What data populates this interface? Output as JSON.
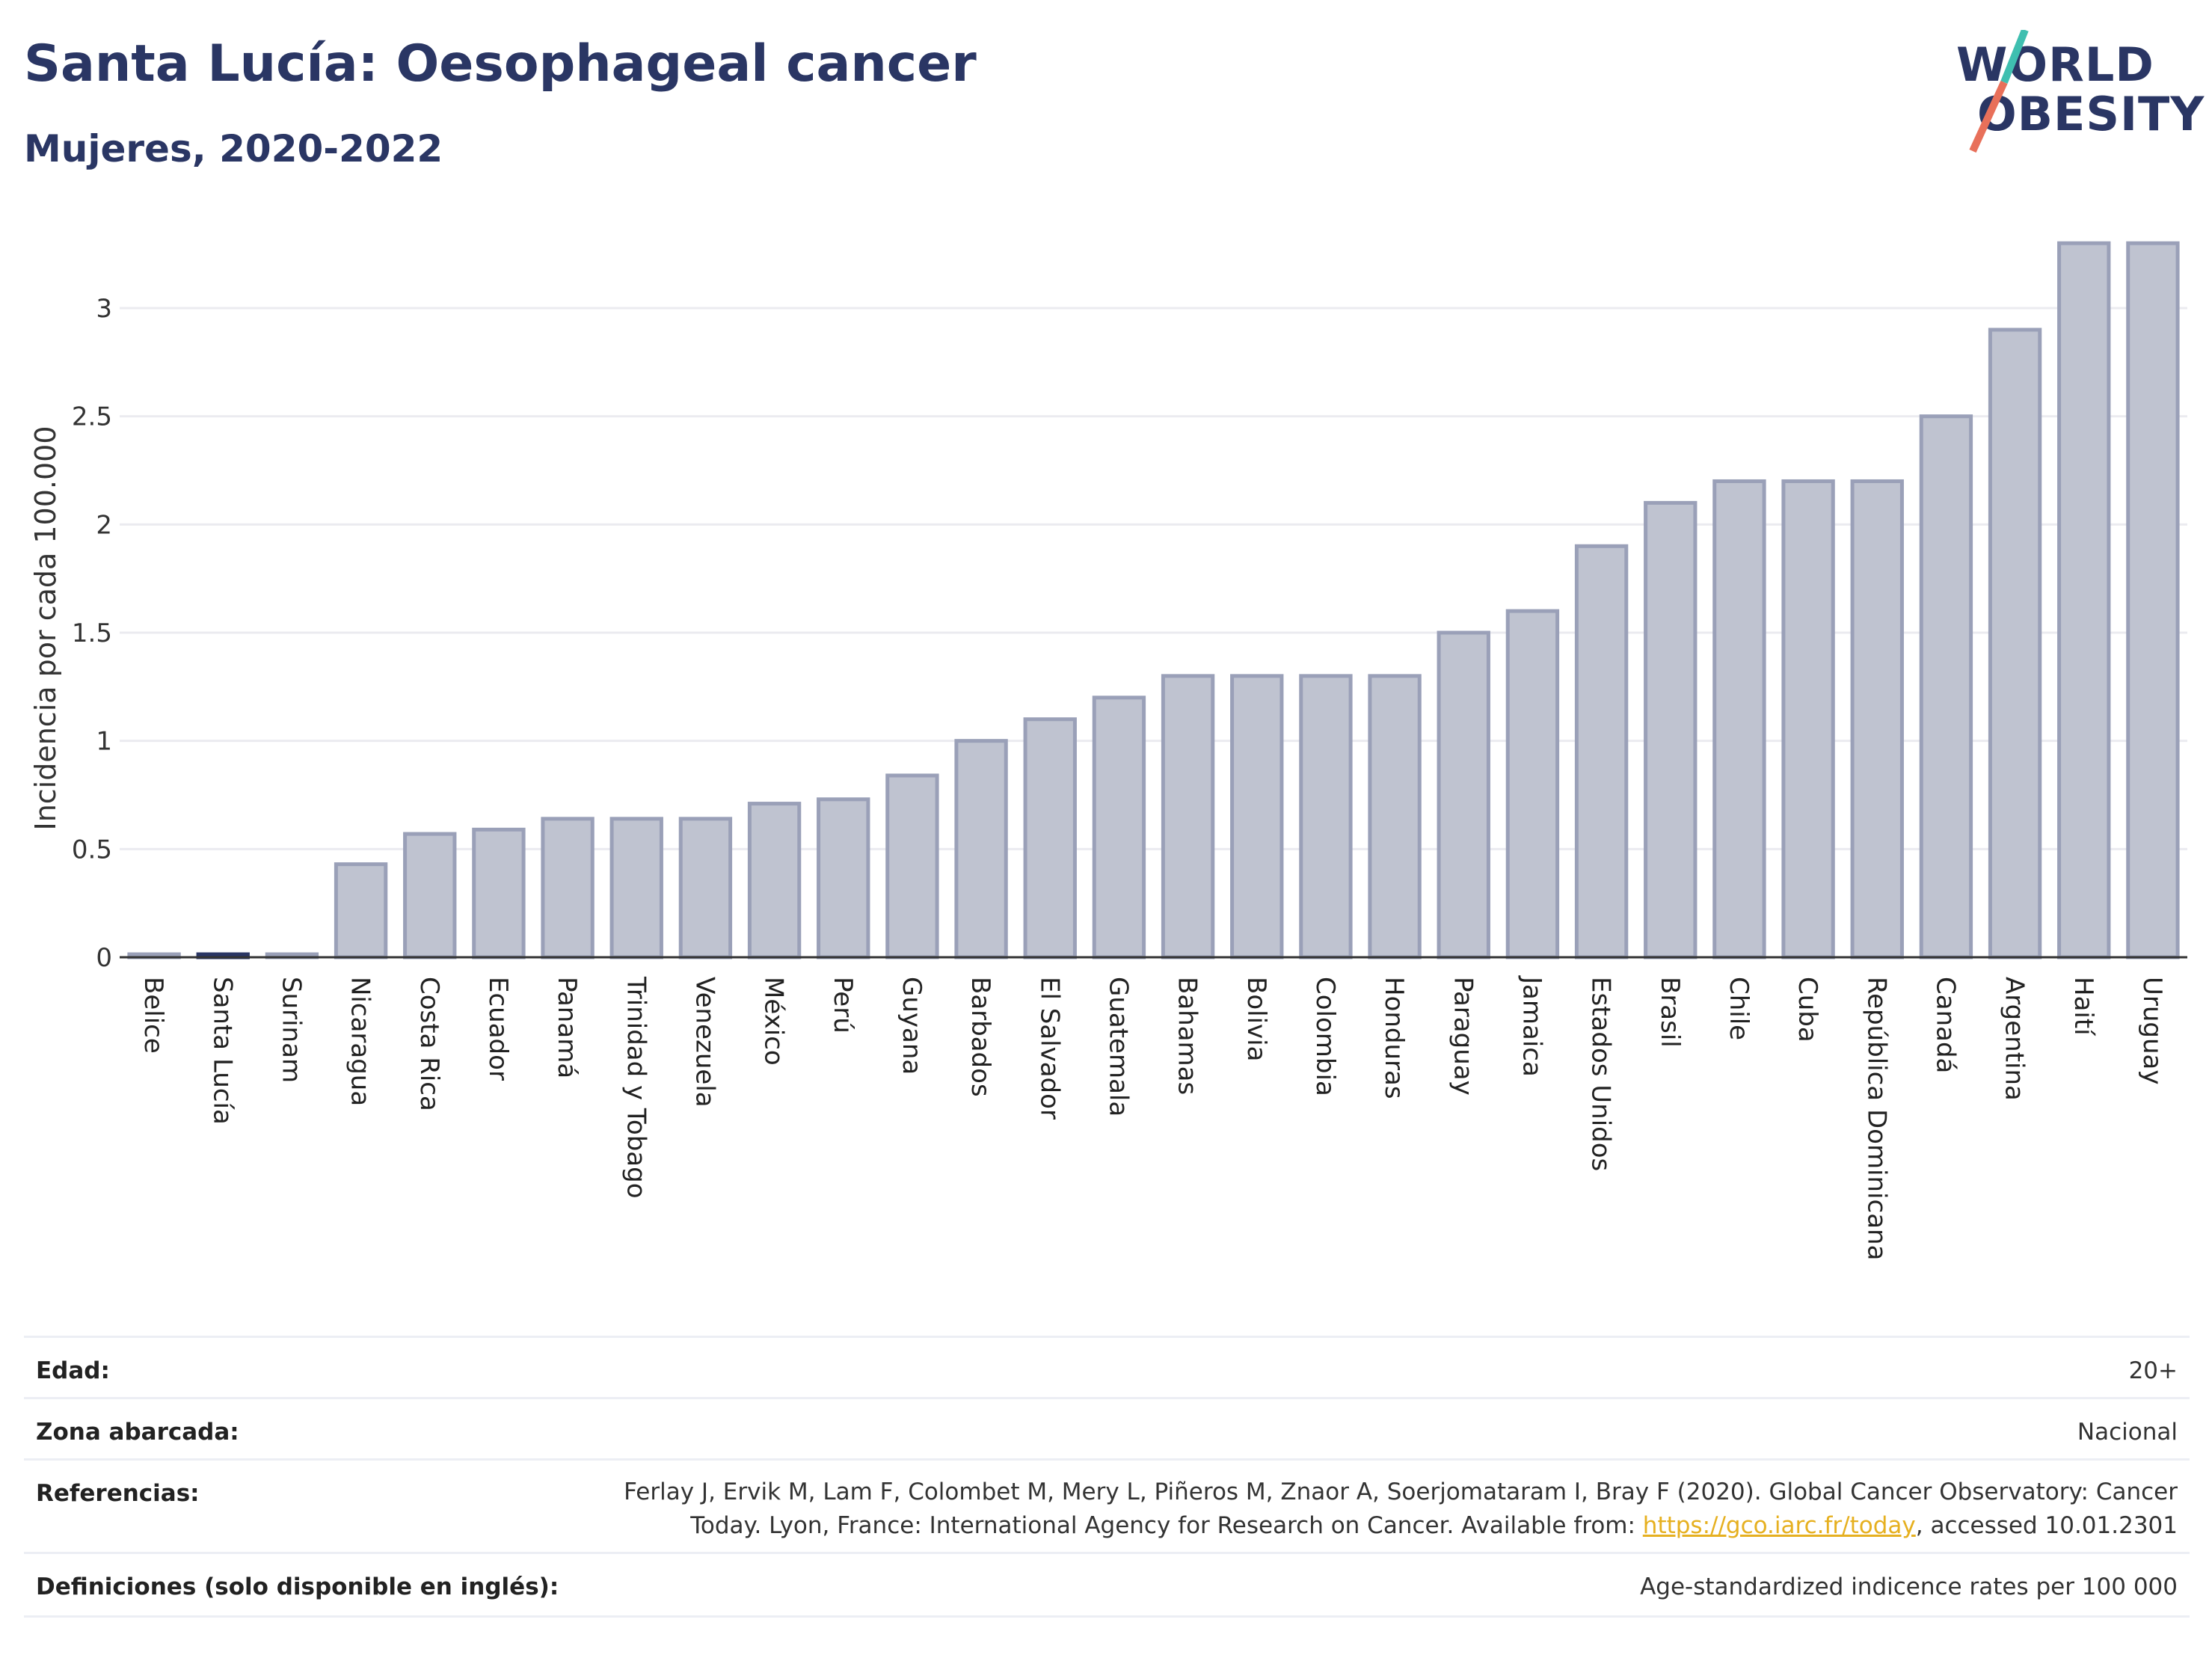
{
  "header": {
    "title": "Santa Lucía: Oesophageal cancer",
    "subtitle": "Mujeres, 2020-2022"
  },
  "logo": {
    "line1": "WORLD",
    "line2": "OBESITY"
  },
  "chart_data": {
    "type": "bar",
    "ylabel": "Incidencia por cada 100.000",
    "xlabel": "",
    "ylim": [
      0,
      3.3
    ],
    "yticks": [
      0,
      0.5,
      1,
      1.5,
      2,
      2.5,
      3
    ],
    "ytick_labels": [
      "0",
      "0.5",
      "1",
      "1.5",
      "2",
      "2.5",
      "3"
    ],
    "grid": true,
    "categories": [
      "Belice",
      "Santa Lucía",
      "Surinam",
      "Nicaragua",
      "Costa Rica",
      "Ecuador",
      "Panamá",
      "Trinidad y Tobago",
      "Venezuela",
      "México",
      "Perú",
      "Guyana",
      "Barbados",
      "El Salvador",
      "Guatemala",
      "Bahamas",
      "Bolivia",
      "Colombia",
      "Honduras",
      "Paraguay",
      "Jamaica",
      "Estados Unidos",
      "Brasil",
      "Chile",
      "Cuba",
      "República Dominicana",
      "Canadá",
      "Argentina",
      "Haití",
      "Uruguay"
    ],
    "values": [
      0.01,
      0.01,
      0.01,
      0.43,
      0.57,
      0.59,
      0.64,
      0.64,
      0.64,
      0.71,
      0.73,
      0.84,
      1.0,
      1.1,
      1.2,
      1.3,
      1.3,
      1.3,
      1.3,
      1.5,
      1.6,
      1.9,
      2.1,
      2.2,
      2.2,
      2.2,
      2.5,
      2.9,
      3.3,
      3.3
    ],
    "highlight": "Santa Lucía",
    "colors": {
      "bar": "#bfc3d0",
      "bar_edge": "#9aa0b8",
      "highlight": "#2a3664",
      "grid": "#ebebf0",
      "axis": "#333333"
    }
  },
  "meta": {
    "rows": [
      {
        "key": "Edad:",
        "value": "20+"
      },
      {
        "key": "Zona abarcada:",
        "value": "Nacional"
      },
      {
        "key": "Referencias:",
        "value_line1": "Ferlay J, Ervik M, Lam F, Colombet M, Mery L, Piñeros M, Znaor A, Soerjomataram I, Bray F (2020). Global Cancer Observatory: Cancer",
        "value_line2_pre": "Today. Lyon, France: International Agency for Research on Cancer. Available from: ",
        "value_link": "https://gco.iarc.fr/today",
        "value_line2_post": ", accessed 10.01.2301"
      },
      {
        "key": "Definiciones (solo disponible en inglés):",
        "value": "Age-standardized indicence rates per 100 000"
      }
    ]
  }
}
